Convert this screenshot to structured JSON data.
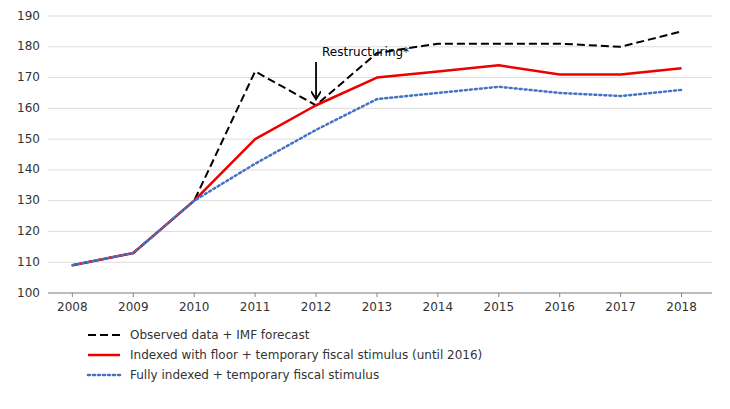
{
  "chart_data": {
    "type": "line",
    "x": [
      2008,
      2009,
      2010,
      2011,
      2012,
      2013,
      2014,
      2015,
      2016,
      2017,
      2018
    ],
    "series": [
      {
        "name": "Observed data + IMF forecast",
        "color": "#000000",
        "line_style": "dashed",
        "values": [
          109,
          113,
          130,
          172,
          161,
          178,
          181,
          181,
          181,
          180,
          185
        ]
      },
      {
        "name": "Indexed with floor + temporary fiscal stimulus (until 2016)",
        "color": "#ee0000",
        "line_style": "solid",
        "values": [
          109,
          113,
          130,
          150,
          161,
          170,
          172,
          174,
          171,
          171,
          173
        ]
      },
      {
        "name": "Fully indexed + temporary fiscal stimulus",
        "color": "#4472c4",
        "line_style": "dotted",
        "values": [
          109,
          113,
          130,
          142,
          153,
          163,
          165,
          167,
          165,
          164,
          166
        ]
      }
    ],
    "annotations": [
      {
        "text": "Restructuring*",
        "x": 2012,
        "y": 178,
        "arrow_x": 2012,
        "arrow_y": 161
      }
    ],
    "xlim": [
      2007.6,
      2018.5
    ],
    "xticks": [
      2008,
      2009,
      2010,
      2011,
      2012,
      2013,
      2014,
      2015,
      2016,
      2017,
      2018
    ],
    "ylim": [
      100,
      190
    ],
    "yticks": [
      100,
      110,
      120,
      130,
      140,
      150,
      160,
      170,
      180,
      190
    ],
    "grid": true,
    "legend": "bottom"
  }
}
